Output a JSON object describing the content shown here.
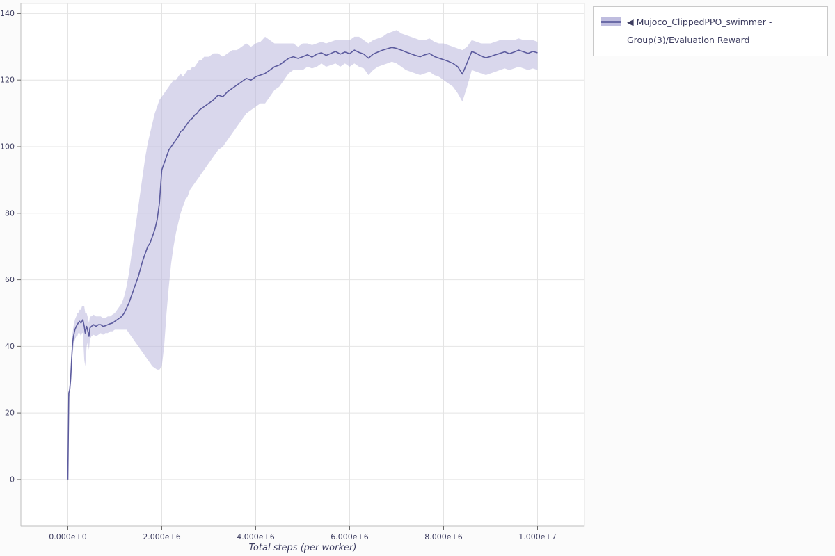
{
  "legend": {
    "position": "top-right",
    "items": [
      {
        "arrow": "◀",
        "label": "Mujoco_ClippedPPO_swimmer - Group(3)/Evaluation Reward"
      }
    ]
  },
  "chart_data": {
    "type": "line",
    "title": "",
    "xlabel": "Total steps (per worker)",
    "ylabel": "",
    "grid": true,
    "legend_position": "top-right-outside",
    "xlim": [
      -1000000,
      11000000
    ],
    "ylim": [
      -14,
      143
    ],
    "x_ticks": {
      "values": [
        0,
        2000000,
        4000000,
        6000000,
        8000000,
        10000000
      ],
      "labels": [
        "0.000e+0",
        "2.000e+6",
        "4.000e+6",
        "6.000e+6",
        "8.000e+6",
        "1.000e+7"
      ]
    },
    "y_ticks": {
      "values": [
        0,
        20,
        40,
        60,
        80,
        100,
        120,
        140
      ],
      "labels": [
        "0",
        "20",
        "40",
        "60",
        "80",
        "100",
        "120",
        "140"
      ]
    },
    "colors": {
      "line": "#5c5b9e",
      "band": "#b9b6dc",
      "grid": "#e4e4e4",
      "axis": "#bdbdbd",
      "frame_outline": "#e3e3e3",
      "plot_background": "#ffffff"
    },
    "series": [
      {
        "name": "Mujoco_ClippedPPO_swimmer - Group(3)/Evaluation Reward",
        "color": "#5c5b9e",
        "band_color": "#b9b6dc",
        "band_opacity": 0.55,
        "x": [
          0,
          20000,
          40000,
          60000,
          80000,
          100000,
          120000,
          150000,
          180000,
          200000,
          220000,
          250000,
          280000,
          300000,
          320000,
          350000,
          370000,
          400000,
          420000,
          450000,
          470000,
          500000,
          550000,
          600000,
          650000,
          700000,
          750000,
          800000,
          850000,
          900000,
          950000,
          1000000,
          1050000,
          1100000,
          1150000,
          1200000,
          1250000,
          1300000,
          1350000,
          1400000,
          1450000,
          1500000,
          1550000,
          1600000,
          1650000,
          1700000,
          1750000,
          1800000,
          1850000,
          1900000,
          1950000,
          2000000,
          2050000,
          2100000,
          2150000,
          2200000,
          2250000,
          2300000,
          2350000,
          2400000,
          2450000,
          2500000,
          2550000,
          2600000,
          2650000,
          2700000,
          2750000,
          2800000,
          2850000,
          2900000,
          2950000,
          3000000,
          3100000,
          3200000,
          3300000,
          3400000,
          3500000,
          3600000,
          3700000,
          3800000,
          3900000,
          4000000,
          4100000,
          4200000,
          4300000,
          4400000,
          4500000,
          4600000,
          4700000,
          4800000,
          4900000,
          5000000,
          5100000,
          5200000,
          5300000,
          5400000,
          5500000,
          5600000,
          5700000,
          5800000,
          5900000,
          6000000,
          6100000,
          6200000,
          6300000,
          6400000,
          6500000,
          6600000,
          6700000,
          6800000,
          6900000,
          7000000,
          7100000,
          7200000,
          7300000,
          7400000,
          7500000,
          7600000,
          7700000,
          7800000,
          7900000,
          8000000,
          8100000,
          8200000,
          8300000,
          8400000,
          8500000,
          8600000,
          8700000,
          8800000,
          8900000,
          9000000,
          9100000,
          9200000,
          9300000,
          9400000,
          9500000,
          9600000,
          9700000,
          9800000,
          9900000,
          10000000
        ],
        "mean": [
          0,
          26,
          27,
          30,
          36,
          41,
          43,
          45,
          46,
          46.5,
          47,
          47.5,
          47,
          47.5,
          48,
          46,
          44,
          46,
          45,
          43,
          45.5,
          46,
          46.5,
          46,
          46.5,
          46.5,
          46,
          46.2,
          46.5,
          46.8,
          47,
          47.5,
          48,
          48.5,
          49,
          50,
          51.5,
          53,
          55,
          57,
          59,
          61,
          63.5,
          66,
          68,
          70,
          71,
          73,
          75,
          78,
          83,
          93,
          95,
          97,
          99,
          100,
          101,
          102,
          103,
          104.5,
          105,
          106,
          107,
          108,
          108.5,
          109.5,
          110,
          111,
          111.5,
          112,
          112.5,
          113,
          114,
          115.5,
          115,
          116.5,
          117.5,
          118.5,
          119.5,
          120.5,
          120,
          121,
          121.5,
          122,
          123,
          124,
          124.5,
          125.5,
          126.5,
          127,
          126.5,
          127,
          127.6,
          126.9,
          127.8,
          128.2,
          127.4,
          128,
          128.6,
          127.8,
          128.4,
          127.9,
          129,
          128.3,
          127.8,
          126.6,
          127.8,
          128.4,
          129,
          129.4,
          129.8,
          129.5,
          129,
          128.4,
          127.9,
          127.4,
          127,
          127.6,
          128,
          127.1,
          126.6,
          126.1,
          125.6,
          125,
          124,
          121.8,
          125.2,
          128.6,
          128,
          127.2,
          126.7,
          127.1,
          127.6,
          128,
          128.5,
          127.9,
          128.4,
          129,
          128.5,
          128,
          128.6,
          128.2
        ],
        "lower": [
          0,
          25,
          25,
          28,
          33,
          38,
          40,
          42,
          43,
          43,
          44,
          44,
          43,
          44,
          44,
          36,
          34,
          40,
          41,
          39,
          42,
          43,
          43.5,
          43,
          43.5,
          44,
          43.5,
          44,
          44,
          44.5,
          44.5,
          45,
          45,
          45,
          45,
          45,
          45,
          44,
          43,
          42,
          41,
          40,
          39,
          38,
          37,
          36,
          35,
          34,
          33.5,
          33,
          33,
          34,
          40,
          50,
          58,
          65,
          70,
          74,
          77,
          80,
          82,
          84,
          85,
          87,
          88,
          89,
          90,
          91,
          92,
          93,
          94,
          95,
          97,
          99,
          100,
          102,
          104,
          106,
          108,
          110,
          111,
          112,
          113,
          113,
          115,
          117,
          118,
          120,
          122,
          123,
          123,
          123,
          124,
          123.5,
          124,
          125,
          124,
          124.5,
          125,
          124,
          125,
          124,
          125,
          124,
          123.5,
          121.5,
          123,
          124,
          124.5,
          125,
          125.5,
          125,
          124,
          123,
          122.5,
          122,
          121.5,
          122,
          122.5,
          121.5,
          121,
          120,
          119,
          118,
          116,
          113.5,
          118,
          123,
          122.5,
          122,
          121.5,
          122,
          122.5,
          123,
          123.5,
          123,
          123.5,
          124,
          123.5,
          123,
          123.5,
          123
        ],
        "upper": [
          0,
          27,
          29,
          33,
          39,
          44,
          46,
          48,
          49,
          50,
          50,
          51,
          51,
          52,
          52,
          52,
          50,
          50,
          49,
          47,
          49,
          49,
          49.5,
          49,
          49,
          49,
          48.5,
          48.5,
          49,
          49,
          49.5,
          50,
          51,
          52,
          53,
          55,
          58,
          62,
          67,
          72,
          77,
          82,
          87,
          92,
          97,
          101,
          104,
          107,
          110,
          112,
          114,
          115,
          116,
          117,
          118,
          119,
          120,
          120,
          121,
          122,
          121,
          122,
          123,
          123,
          124,
          124,
          125,
          126,
          126,
          127,
          127,
          127,
          128,
          128,
          127,
          128,
          129,
          129,
          130,
          131,
          130,
          131,
          131.5,
          133,
          132,
          131,
          131,
          131,
          131,
          131,
          130,
          131,
          131,
          130.5,
          131,
          131.5,
          131,
          131.5,
          132,
          132,
          132,
          132,
          133,
          133,
          132,
          131,
          132,
          132.5,
          133,
          134,
          134.5,
          135,
          134,
          133.5,
          133,
          132.5,
          132,
          132,
          132.5,
          131.5,
          131,
          131,
          130.5,
          130,
          129.5,
          129,
          130,
          132,
          131.5,
          131,
          131,
          131,
          131.5,
          132,
          132,
          132,
          132,
          132.5,
          132,
          132,
          132,
          131.5
        ]
      }
    ]
  }
}
